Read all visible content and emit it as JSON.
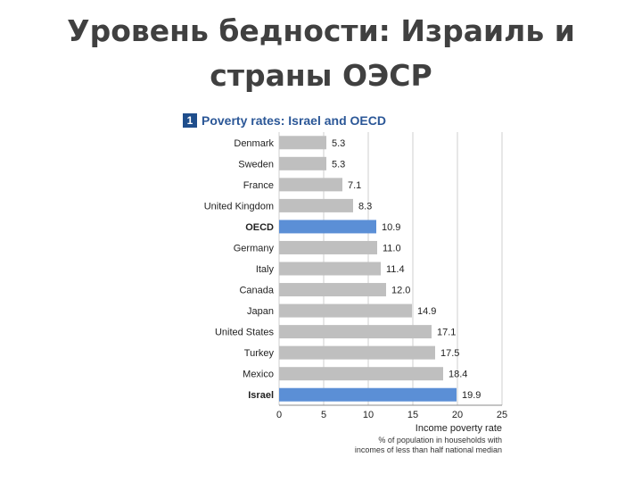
{
  "slide": {
    "title_line1": "Уровень бедности: Израиль и",
    "title_line2": "страны ОЭСР"
  },
  "figure": {
    "number": "1",
    "title": "Poverty rates: Israel and OECD"
  },
  "colors": {
    "bar_default": "#bfbfbf",
    "bar_highlight": "#5b8fd6",
    "grid": "#cfcfcf",
    "heading": "#2b5797"
  },
  "chart_data": {
    "type": "bar",
    "orientation": "horizontal",
    "categories": [
      "Denmark",
      "Sweden",
      "France",
      "United Kingdom",
      "OECD",
      "Germany",
      "Italy",
      "Canada",
      "Japan",
      "United States",
      "Turkey",
      "Mexico",
      "Israel"
    ],
    "values": [
      5.3,
      5.3,
      7.1,
      8.3,
      10.9,
      11.0,
      11.4,
      12.0,
      14.9,
      17.1,
      17.5,
      18.4,
      19.9
    ],
    "value_labels": [
      "5.3",
      "5.3",
      "7.1",
      "8.3",
      "10.9",
      "11.0",
      "11.4",
      "12.0",
      "14.9",
      "17.1",
      "17.5",
      "18.4",
      "19.9"
    ],
    "highlighted": [
      "OECD",
      "Israel"
    ],
    "xlim": [
      0,
      25
    ],
    "xticks": [
      0,
      5,
      10,
      15,
      20,
      25
    ],
    "xlabel": "Income poverty rate",
    "xlabel_note_line1": "% of population in households with",
    "xlabel_note_line2": "incomes of less than half national median",
    "grid": true
  }
}
